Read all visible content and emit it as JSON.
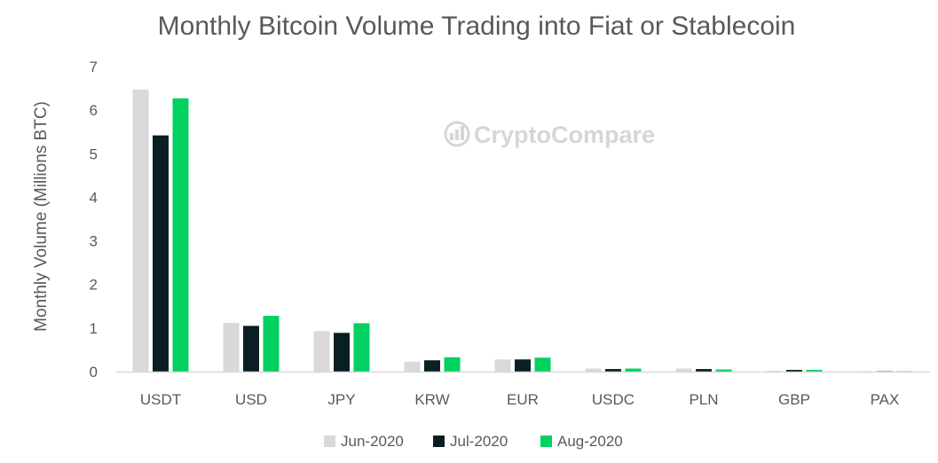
{
  "chart_data": {
    "type": "bar",
    "title": "Monthly Bitcoin Volume Trading into Fiat or Stablecoin",
    "xlabel": "",
    "ylabel": "Monthly Volume (Millions BTC)",
    "ylim": [
      0,
      7
    ],
    "yticks": [
      0,
      1,
      2,
      3,
      4,
      5,
      6,
      7
    ],
    "grid": false,
    "legend_position": "bottom",
    "categories": [
      "USDT",
      "USD",
      "JPY",
      "KRW",
      "EUR",
      "USDC",
      "PLN",
      "GBP",
      "PAX"
    ],
    "series": [
      {
        "name": "Jun-2020",
        "color": "#d9d9d9",
        "values": [
          6.47,
          1.12,
          0.93,
          0.23,
          0.28,
          0.07,
          0.07,
          0.02,
          0.01
        ]
      },
      {
        "name": "Jul-2020",
        "color": "#0a1f24",
        "values": [
          5.42,
          1.05,
          0.89,
          0.26,
          0.28,
          0.06,
          0.06,
          0.04,
          0.01
        ]
      },
      {
        "name": "Aug-2020",
        "color": "#00d160",
        "values": [
          6.27,
          1.28,
          1.11,
          0.33,
          0.32,
          0.07,
          0.05,
          0.04,
          0.01
        ]
      }
    ]
  },
  "watermark": {
    "text_light": "Crypto",
    "text_bold": "Compare"
  }
}
